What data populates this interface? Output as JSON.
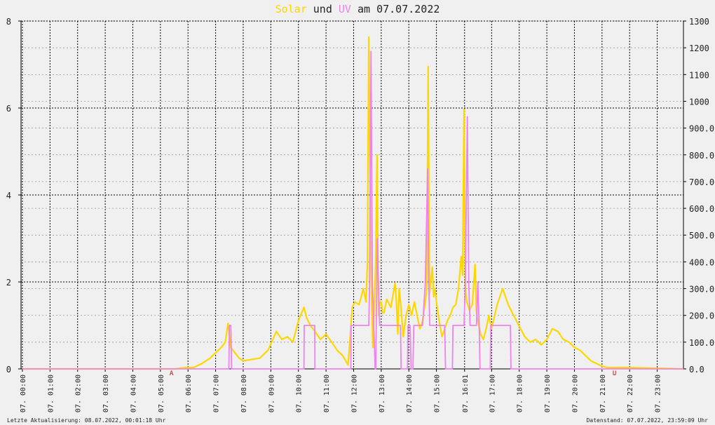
{
  "title": {
    "word_solar": "Solar",
    "word_und": "und",
    "word_uv": "UV",
    "word_am": "am",
    "date": "07.07.2022"
  },
  "footer": {
    "last_update": "Letzte Aktualisierung: 08.07.2022, 00:01:18 Uhr",
    "data_state": "Datenstand: 07.07.2022, 23:59:09 Uhr"
  },
  "colors": {
    "solar": "#ffd700",
    "uv": "#ee82ee",
    "background": "#f0f0f0",
    "grid": "#000000"
  },
  "chart_data": {
    "type": "line",
    "title": "Solar und UV am 07.07.2022",
    "grid": true,
    "x_tick_labels": [
      "07. 00:00",
      "07. 01:00",
      "07. 02:00",
      "07. 03:00",
      "07. 04:00",
      "07. 05:00",
      "07. 06:00",
      "07. 07:00",
      "07. 08:00",
      "07. 09:00",
      "07. 10:00",
      "07. 11:00",
      "07. 12:00",
      "07. 13:00",
      "07. 14:00",
      "07. 15:00",
      "07. 16:01",
      "07. 17:00",
      "07. 18:00",
      "07. 19:00",
      "07. 20:00",
      "07. 21:00",
      "07. 22:00",
      "07. 23:00"
    ],
    "x_tick_hours": [
      0,
      1,
      2,
      3,
      4,
      5,
      6,
      7,
      8,
      9,
      10,
      11,
      12,
      13,
      14,
      15,
      16.02,
      17,
      18,
      19,
      20,
      21,
      22,
      23
    ],
    "x_range_hours": [
      -0.05,
      23.95
    ],
    "left_axis": {
      "ylim": [
        0,
        8
      ],
      "ticks": [
        "0",
        "2",
        "4",
        "6",
        "8"
      ],
      "tick_values": [
        0,
        2,
        4,
        6,
        8
      ]
    },
    "right_axis": {
      "ylim": [
        0,
        1300
      ],
      "ticks": [
        "0.0",
        "100.0",
        "200.0",
        "300.0",
        "400.0",
        "500.0",
        "600.0",
        "700.0",
        "800.0",
        "900.0",
        "1000",
        "1100",
        "1200",
        "1300"
      ],
      "tick_values": [
        0,
        100,
        200,
        300,
        400,
        500,
        600,
        700,
        800,
        900,
        1000,
        1100,
        1200,
        1300
      ]
    },
    "markers": [
      {
        "label": "A",
        "hour": 5.4
      },
      {
        "label": "U",
        "hour": 21.45
      }
    ],
    "series": [
      {
        "name": "Solar",
        "axis": "right",
        "x": [
          0,
          5.5,
          5.9,
          6.2,
          6.5,
          6.8,
          7.0,
          7.2,
          7.35,
          7.45,
          7.55,
          7.7,
          7.85,
          8.0,
          8.3,
          8.6,
          8.9,
          9.2,
          9.4,
          9.6,
          9.8,
          10.0,
          10.2,
          10.3,
          10.45,
          10.6,
          10.8,
          11.0,
          11.2,
          11.4,
          11.6,
          11.8,
          11.95,
          12.05,
          12.2,
          12.35,
          12.45,
          12.5,
          12.55,
          12.6,
          12.65,
          12.7,
          12.8,
          12.85,
          12.9,
          12.95,
          13.0,
          13.05,
          13.1,
          13.2,
          13.35,
          13.5,
          13.55,
          13.6,
          13.65,
          13.7,
          13.8,
          13.9,
          14.0,
          14.1,
          14.2,
          14.3,
          14.4,
          14.5,
          14.6,
          14.65,
          14.7,
          14.75,
          14.8,
          14.85,
          14.9,
          14.95,
          15.0,
          15.1,
          15.2,
          15.3,
          15.4,
          15.5,
          15.6,
          15.7,
          15.8,
          15.9,
          15.95,
          16.0,
          16.05,
          16.1,
          16.2,
          16.3,
          16.4,
          16.45,
          16.5,
          16.6,
          16.7,
          16.8,
          16.9,
          17.0,
          17.2,
          17.4,
          17.5,
          17.6,
          17.8,
          18.0,
          18.2,
          18.4,
          18.6,
          18.8,
          19.0,
          19.2,
          19.4,
          19.6,
          19.8,
          20.0,
          20.2,
          20.4,
          20.6,
          20.8,
          21.0,
          21.2,
          21.5,
          22.0,
          23.95
        ],
        "values": [
          0,
          0,
          5,
          5,
          20,
          40,
          60,
          80,
          100,
          170,
          80,
          60,
          40,
          30,
          35,
          40,
          70,
          140,
          110,
          120,
          100,
          180,
          230,
          190,
          160,
          140,
          110,
          130,
          100,
          70,
          50,
          15,
          230,
          250,
          240,
          300,
          250,
          400,
          1240,
          700,
          250,
          80,
          400,
          800,
          200,
          250,
          250,
          210,
          210,
          260,
          230,
          320,
          250,
          130,
          300,
          250,
          120,
          200,
          240,
          200,
          250,
          200,
          150,
          180,
          250,
          300,
          1130,
          280,
          330,
          380,
          270,
          300,
          250,
          180,
          120,
          150,
          180,
          200,
          230,
          240,
          300,
          420,
          350,
          970,
          300,
          250,
          220,
          240,
          390,
          210,
          180,
          130,
          110,
          150,
          200,
          150,
          240,
          300,
          270,
          240,
          200,
          160,
          120,
          100,
          110,
          90,
          110,
          150,
          140,
          110,
          100,
          80,
          70,
          50,
          30,
          20,
          10,
          5,
          5,
          5,
          0
        ],
        "color": "#ffd700"
      },
      {
        "name": "UV",
        "axis": "left",
        "x": [
          0,
          7.48,
          7.5,
          7.55,
          7.58,
          10.2,
          10.21,
          10.59,
          10.6,
          11.9,
          11.91,
          12.55,
          12.58,
          12.63,
          12.68,
          12.73,
          12.78,
          12.8,
          12.86,
          12.9,
          12.94,
          12.98,
          13.7,
          13.72,
          13.95,
          13.97,
          14.05,
          14.08,
          14.15,
          14.18,
          14.5,
          14.6,
          14.68,
          14.72,
          14.76,
          15.3,
          15.33,
          15.58,
          15.6,
          16.0,
          16.05,
          16.12,
          16.17,
          16.22,
          16.45,
          16.5,
          16.55,
          16.58,
          16.95,
          16.97,
          17.68,
          17.7,
          23.95
        ],
        "values": [
          0,
          0,
          1,
          1,
          0,
          0,
          1,
          1,
          0,
          0,
          1,
          1,
          2,
          7.3,
          2,
          1,
          0,
          0,
          3,
          2,
          1,
          1,
          1,
          0,
          0,
          1,
          1,
          0,
          0,
          1,
          1,
          2,
          4.6,
          2,
          1,
          1,
          0,
          0,
          1,
          1,
          2,
          5.8,
          2,
          1,
          1,
          2,
          1,
          0,
          0,
          1,
          1,
          0,
          0
        ],
        "color": "#ee82ee"
      }
    ]
  }
}
